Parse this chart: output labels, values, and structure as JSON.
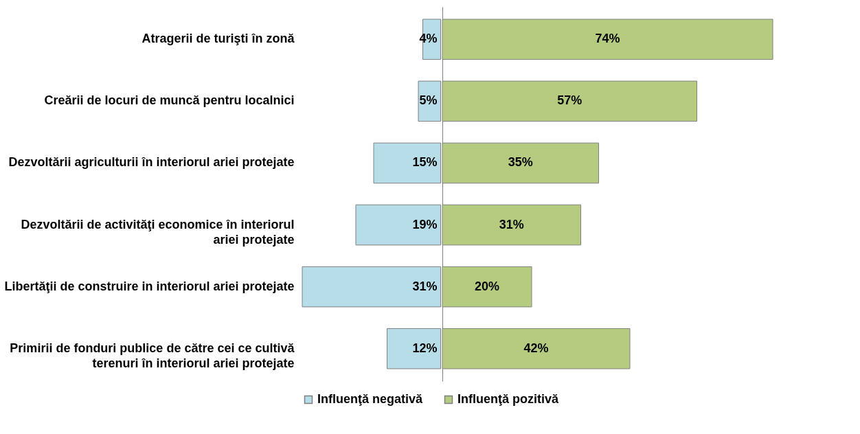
{
  "chart_data": [
    {
      "type": "bar",
      "orientation": "horizontal",
      "categories": [
        "Atragerii de turişti în zonă",
        "Creării de locuri de muncă pentru localnici",
        "Dezvoltării agriculturii în interiorul ariei protejate",
        "Dezvoltării de activităţi economice în interiorul ariei protejate",
        "Libertăţii de construire in interiorul ariei protejate",
        "Primirii de fonduri publice de către cei ce cultivă terenuri în interiorul ariei protejate"
      ],
      "series": [
        {
          "name": "Influenţă negativă",
          "color": "#b7dee8",
          "values": [
            4,
            5,
            15,
            19,
            31,
            12
          ],
          "value_labels": [
            "4%",
            "5%",
            "15%",
            "19%",
            "31%",
            "12%"
          ]
        }
      ],
      "xlim": [
        31,
        0
      ],
      "tick_labels": "y",
      "legend": "bottom"
    },
    {
      "type": "bar",
      "orientation": "horizontal",
      "categories": [
        null,
        null,
        null,
        null,
        null,
        null
      ],
      "series": [
        {
          "name": "Influenţă pozitivă",
          "color": "#b5cc80",
          "values": [
            74,
            57,
            35,
            31,
            20,
            42
          ],
          "value_labels": [
            "74%",
            "57%",
            "35%",
            "31%",
            "20%",
            "42%"
          ]
        }
      ],
      "xlim": [
        0,
        74
      ],
      "tick_labels": false,
      "legend": "bottom"
    }
  ]
}
